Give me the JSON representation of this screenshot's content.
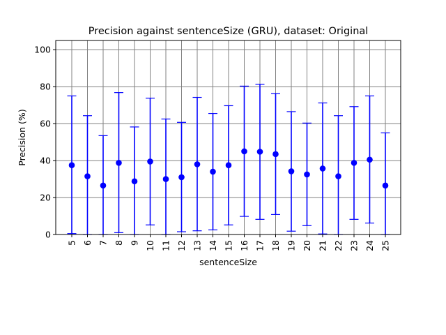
{
  "chart_data": {
    "type": "scatter",
    "title": "Precision against sentenceSize (GRU), dataset: Original",
    "xlabel": "sentenceSize",
    "ylabel": "Precision (%)",
    "ylim": [
      0,
      105
    ],
    "yticks": [
      0,
      20,
      40,
      60,
      80,
      100
    ],
    "grid": true,
    "marker_color": "#0000ff",
    "grid_color": "#808080",
    "x": [
      "5",
      "6",
      "7",
      "8",
      "9",
      "10",
      "11",
      "12",
      "13",
      "14",
      "15",
      "16",
      "17",
      "18",
      "19",
      "20",
      "21",
      "22",
      "23",
      "24",
      "25"
    ],
    "means": [
      37.5,
      31.5,
      26.5,
      38.8,
      28.8,
      39.5,
      30.0,
      31.0,
      38.0,
      34.0,
      37.5,
      45.0,
      44.8,
      43.5,
      34.2,
      32.5,
      35.7,
      31.5,
      38.8,
      40.5,
      26.5
    ],
    "err_low": [
      0.5,
      0,
      0,
      1.0,
      0,
      5.2,
      0,
      1.5,
      2.0,
      2.5,
      5.2,
      9.8,
      8.2,
      10.8,
      1.8,
      4.8,
      0.3,
      0,
      8.2,
      6.2,
      0
    ],
    "err_high": [
      75.0,
      64.3,
      53.5,
      76.8,
      58.2,
      73.8,
      62.5,
      60.7,
      74.2,
      65.5,
      69.7,
      80.3,
      81.3,
      76.3,
      66.5,
      60.3,
      71.2,
      64.3,
      69.2,
      75.0,
      55.0
    ]
  }
}
